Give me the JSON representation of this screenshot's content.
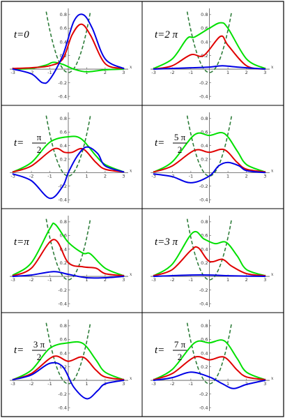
{
  "colors": {
    "green": "#00e000",
    "red": "#e00000",
    "blue": "#0000e6",
    "potential": "#2e7d3a"
  },
  "chart_data": {
    "type": "line",
    "layout": "4x2 grid of panels",
    "x_axis": {
      "label": "x",
      "range": [
        -3.1,
        3.1
      ],
      "ticks": [
        "-3",
        "-2",
        "-1",
        "1",
        "2",
        "3"
      ]
    },
    "y_axis": {
      "range": [
        -0.45,
        0.85
      ],
      "ticks": [
        "-0.4",
        "-0.2",
        "0.2",
        "0.4",
        "0.6",
        "0.8"
      ]
    },
    "potential_curve": {
      "style": "dashed",
      "color": "#2e7d3a"
    },
    "panels": [
      {
        "label": "t=0",
        "green": {
          "x": [
            -3,
            -2,
            -1.2,
            -0.8,
            -0.3,
            0.3,
            1,
            2,
            3
          ],
          "y": [
            0,
            0.01,
            0.06,
            0.1,
            0.07,
            0,
            -0.04,
            -0.01,
            0
          ]
        },
        "red": {
          "x": [
            -3,
            -2,
            -1,
            -0.3,
            0.2,
            0.7,
            1.2,
            2,
            3
          ],
          "y": [
            0.01,
            0.02,
            0.05,
            0.15,
            0.5,
            0.66,
            0.5,
            0.08,
            0.01
          ]
        },
        "blue": {
          "x": [
            -3,
            -2,
            -1.4,
            -1,
            -0.3,
            0.3,
            0.8,
            1.3,
            2,
            3
          ],
          "y": [
            0,
            -0.07,
            -0.2,
            -0.15,
            0.2,
            0.7,
            0.8,
            0.6,
            0.15,
            0.01
          ]
        }
      },
      {
        "label": "t=2 π",
        "green": {
          "x": [
            -3,
            -2,
            -1.2,
            -0.8,
            0,
            0.6,
            1,
            2,
            3
          ],
          "y": [
            0.01,
            0.15,
            0.45,
            0.47,
            0.6,
            0.68,
            0.6,
            0.15,
            0.01
          ]
        },
        "red": {
          "x": [
            -3,
            -2,
            -1,
            -0.3,
            0.6,
            1,
            2,
            3
          ],
          "y": [
            0,
            0.05,
            0.21,
            0.2,
            0.48,
            0.35,
            0.05,
            0
          ]
        },
        "blue": {
          "x": [
            -3,
            -1,
            0,
            0.7,
            1.5,
            3
          ],
          "y": [
            0,
            0.02,
            0.03,
            0.05,
            0.03,
            0
          ]
        }
      },
      {
        "label": "t= π / 2",
        "green": {
          "x": [
            -3,
            -2,
            -1,
            0,
            0.7,
            1.5,
            2,
            3
          ],
          "y": [
            0.01,
            0.15,
            0.45,
            0.53,
            0.5,
            0.25,
            0.12,
            0.01
          ]
        },
        "red": {
          "x": [
            -3,
            -2,
            -0.8,
            -0.2,
            0.2,
            0.8,
            1.5,
            2,
            3
          ],
          "y": [
            0.01,
            0.1,
            0.35,
            0.3,
            0.3,
            0.35,
            0.15,
            0.05,
            0.01
          ]
        },
        "blue": {
          "x": [
            -3,
            -2,
            -1,
            -0.3,
            0,
            0.5,
            1,
            1.6,
            2,
            3
          ],
          "y": [
            -0.02,
            -0.12,
            -0.38,
            -0.2,
            0,
            0.25,
            0.38,
            0.28,
            0.1,
            0.01
          ]
        }
      },
      {
        "label": "t= 5 π / 2",
        "green": {
          "x": [
            -3,
            -2,
            -0.8,
            0,
            0.8,
            1.5,
            2,
            3
          ],
          "y": [
            0.01,
            0.16,
            0.56,
            0.55,
            0.58,
            0.32,
            0.12,
            0.01
          ]
        },
        "red": {
          "x": [
            -3,
            -2,
            -0.8,
            0,
            0.8,
            1.5,
            2,
            3
          ],
          "y": [
            0.01,
            0.1,
            0.33,
            0.3,
            0.34,
            0.15,
            0.05,
            0.01
          ]
        },
        "blue": {
          "x": [
            -3,
            -2,
            -1,
            0,
            0.5,
            1,
            1.6,
            2,
            3
          ],
          "y": [
            -0.02,
            -0.06,
            -0.15,
            -0.05,
            0.1,
            0.15,
            0.1,
            0.03,
            0
          ]
        }
      },
      {
        "label": "t=π",
        "green": {
          "x": [
            -3,
            -2,
            -1,
            -0.7,
            0,
            0.8,
            1.2,
            2,
            3
          ],
          "y": [
            0.02,
            0.2,
            0.7,
            0.76,
            0.5,
            0.34,
            0.33,
            0.12,
            0.01
          ]
        },
        "red": {
          "x": [
            -3,
            -2,
            -0.8,
            0,
            0.8,
            1.5,
            2,
            3
          ],
          "y": [
            0.01,
            0.12,
            0.54,
            0.2,
            0.14,
            0.12,
            0.04,
            0.01
          ]
        },
        "blue": {
          "x": [
            -3,
            -2,
            -0.8,
            0,
            1,
            2,
            3
          ],
          "y": [
            0,
            0.02,
            0.07,
            0.03,
            -0.02,
            -0.02,
            0
          ]
        }
      },
      {
        "label": "t=3 π",
        "green": {
          "x": [
            -3,
            -2,
            -0.9,
            -0.3,
            0.3,
            0.9,
            1.5,
            2,
            3
          ],
          "y": [
            0.01,
            0.18,
            0.64,
            0.55,
            0.48,
            0.5,
            0.3,
            0.1,
            0.01
          ]
        },
        "red": {
          "x": [
            -3,
            -2,
            -1,
            -0.6,
            0,
            0.7,
            1.2,
            2,
            3
          ],
          "y": [
            0.01,
            0.1,
            0.38,
            0.42,
            0.22,
            0.25,
            0.15,
            0.04,
            0.01
          ]
        },
        "blue": {
          "x": [
            -3,
            -1,
            0,
            1,
            3
          ],
          "y": [
            0,
            0.02,
            0.02,
            0.01,
            0
          ]
        }
      },
      {
        "label": "t= 3 π / 2",
        "green": {
          "x": [
            -3,
            -2,
            -1,
            0,
            0.8,
            1.5,
            2,
            3
          ],
          "y": [
            0.01,
            0.15,
            0.47,
            0.55,
            0.54,
            0.3,
            0.12,
            0.01
          ]
        },
        "red": {
          "x": [
            -3,
            -2,
            -0.8,
            0,
            0.8,
            1.5,
            2,
            3
          ],
          "y": [
            0.01,
            0.1,
            0.35,
            0.28,
            0.34,
            0.15,
            0.05,
            0.01
          ]
        },
        "blue": {
          "x": [
            -3,
            -2,
            -1,
            -0.3,
            0.3,
            1,
            1.6,
            2,
            3
          ],
          "y": [
            0.01,
            0.08,
            0.25,
            0.2,
            -0.1,
            -0.27,
            -0.15,
            -0.05,
            0
          ]
        }
      },
      {
        "label": "t= 7 π / 2",
        "green": {
          "x": [
            -3,
            -2,
            -0.8,
            0,
            0.8,
            1.5,
            2,
            3
          ],
          "y": [
            0.01,
            0.16,
            0.55,
            0.55,
            0.58,
            0.32,
            0.12,
            0.01
          ]
        },
        "red": {
          "x": [
            -3,
            -2,
            -0.8,
            0,
            0.8,
            1.5,
            2,
            3
          ],
          "y": [
            0.01,
            0.1,
            0.34,
            0.3,
            0.34,
            0.15,
            0.05,
            0.01
          ]
        },
        "blue": {
          "x": [
            -3,
            -2,
            -1,
            0,
            0.7,
            1.3,
            2,
            3
          ],
          "y": [
            0,
            0.04,
            0.12,
            0.05,
            -0.05,
            -0.12,
            -0.06,
            0
          ]
        }
      }
    ]
  }
}
